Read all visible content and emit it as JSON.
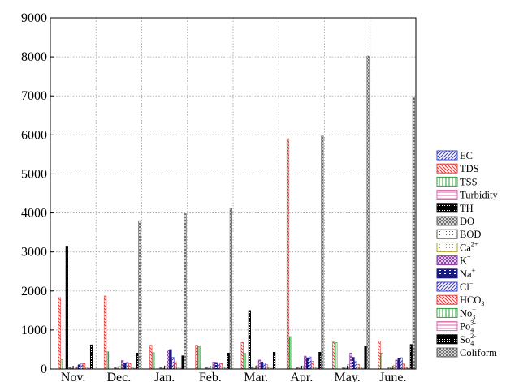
{
  "chart_data": {
    "type": "bar",
    "title": "",
    "xlabel": "",
    "ylabel": "",
    "ylim": [
      0,
      9000
    ],
    "yticks": [
      0,
      1000,
      2000,
      3000,
      4000,
      5000,
      6000,
      7000,
      8000,
      9000
    ],
    "grid": true,
    "legend_position": "right",
    "categories": [
      "Nov.",
      "Dec.",
      "Jan.",
      "Feb.",
      "Mar.",
      "Apr.",
      "May.",
      "June."
    ],
    "series": [
      {
        "name": "EC",
        "legend": {
          "base": "EC"
        },
        "color": "#3b3bd6",
        "pattern": "diag-fwd",
        "values": [
          0,
          0,
          0,
          0,
          0,
          0,
          0,
          0
        ]
      },
      {
        "name": "TDS",
        "legend": {
          "base": "TDS"
        },
        "color": "#e23a3a",
        "pattern": "diag-back",
        "values": [
          1830,
          1870,
          610,
          610,
          680,
          5900,
          690,
          710
        ]
      },
      {
        "name": "TSS",
        "legend": {
          "base": "TSS"
        },
        "color": "#2e9a3a",
        "pattern": "vert",
        "values": [
          240,
          440,
          420,
          580,
          400,
          830,
          680,
          410
        ]
      },
      {
        "name": "Turbidity",
        "legend": {
          "base": "Turbidity"
        },
        "color": "#e060b0",
        "pattern": "horiz",
        "values": [
          0,
          0,
          0,
          0,
          0,
          0,
          0,
          0
        ]
      },
      {
        "name": "TH",
        "legend": {
          "base": "TH"
        },
        "color": "#000000",
        "pattern": "grid",
        "values": [
          3150,
          0,
          0,
          0,
          1500,
          0,
          0,
          0
        ]
      },
      {
        "name": "DO",
        "legend": {
          "base": "DO"
        },
        "color": "#666666",
        "pattern": "cross",
        "values": [
          40,
          40,
          40,
          40,
          40,
          40,
          40,
          40
        ]
      },
      {
        "name": "BOD",
        "legend": {
          "base": "BOD"
        },
        "color": "#555555",
        "pattern": "dots",
        "values": [
          20,
          20,
          20,
          20,
          20,
          20,
          20,
          20
        ]
      },
      {
        "name": "Ca2+",
        "legend": {
          "base": "Ca",
          "sup": "2+"
        },
        "color": "#b8a020",
        "pattern": "dots",
        "values": [
          50,
          80,
          80,
          60,
          90,
          80,
          110,
          90
        ]
      },
      {
        "name": "K+",
        "legend": {
          "base": "K",
          "sup": "+"
        },
        "color": "#8a3aa6",
        "pattern": "cross",
        "values": [
          60,
          220,
          490,
          180,
          230,
          330,
          410,
          230
        ]
      },
      {
        "name": "Na+",
        "legend": {
          "base": "Na",
          "sup": "+"
        },
        "color": "#1a1a7a",
        "pattern": "brick",
        "values": [
          110,
          150,
          500,
          170,
          180,
          290,
          300,
          270
        ]
      },
      {
        "name": "Cl-",
        "legend": {
          "base": "Cl",
          "sup": "−"
        },
        "color": "#3b3bd6",
        "pattern": "diag-fwd",
        "values": [
          130,
          170,
          300,
          160,
          150,
          310,
          190,
          290
        ]
      },
      {
        "name": "HCO3",
        "legend": {
          "base": "HCO",
          "sub": "3"
        },
        "color": "#e23a3a",
        "pattern": "diag-back",
        "values": [
          140,
          140,
          170,
          140,
          110,
          200,
          120,
          130
        ]
      },
      {
        "name": "No3",
        "legend": {
          "base": "No",
          "sub": "3",
          "sup": "−"
        },
        "color": "#2e9a3a",
        "pattern": "vert",
        "values": [
          40,
          40,
          40,
          40,
          40,
          40,
          40,
          40
        ]
      },
      {
        "name": "Po4 3-",
        "legend": {
          "base": "Po",
          "sub": "4",
          "sup": "3-"
        },
        "color": "#e060b0",
        "pattern": "horiz",
        "values": [
          20,
          20,
          20,
          20,
          20,
          20,
          20,
          20
        ]
      },
      {
        "name": "So4 2-",
        "legend": {
          "base": "So",
          "sub": "4",
          "sup": "2-"
        },
        "color": "#000000",
        "pattern": "grid",
        "values": [
          620,
          410,
          340,
          410,
          430,
          430,
          580,
          630
        ]
      },
      {
        "name": "Coliform",
        "legend": {
          "base": "Coliform"
        },
        "color": "#666666",
        "pattern": "cross",
        "values": [
          0,
          3800,
          3980,
          4110,
          0,
          5970,
          8020,
          6950
        ]
      }
    ],
    "notes_on_layout": ""
  }
}
